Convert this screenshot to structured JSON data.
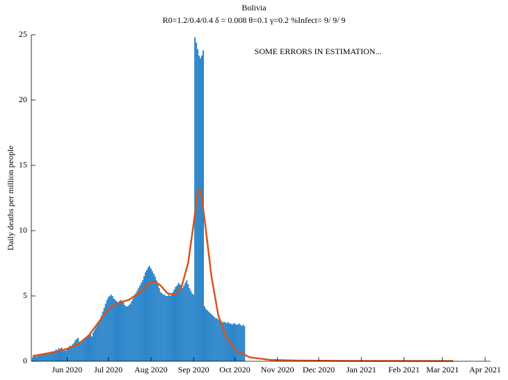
{
  "chart_data": {
    "type": "bar",
    "title": "Bolivia",
    "subtitle": "R0=1.2/0.4/0.4  δ = 0.008  θ=0.1  γ=0.2  %Infect= 9/ 9/ 9",
    "annotation": "SOME ERRORS IN ESTIMATION...",
    "y_label": "Daily deaths per million people",
    "xlim": [
      126,
      460
    ],
    "xticks": [
      {
        "value": 152,
        "label": "Jun 2020"
      },
      {
        "value": 182,
        "label": "Jul 2020"
      },
      {
        "value": 213,
        "label": "Aug 2020"
      },
      {
        "value": 244,
        "label": "Sep 2020"
      },
      {
        "value": 274,
        "label": "Oct 2020"
      },
      {
        "value": 305,
        "label": "Nov 2020"
      },
      {
        "value": 335,
        "label": "Dec 2020"
      },
      {
        "value": 366,
        "label": "Jan 2021"
      },
      {
        "value": 397,
        "label": "Feb 2021"
      },
      {
        "value": 425,
        "label": "Mar 2021"
      },
      {
        "value": 456,
        "label": "Apr 2021"
      }
    ],
    "ylim": [
      0,
      25
    ],
    "yticks": [
      0,
      5,
      10,
      15,
      20,
      25
    ],
    "series": [
      {
        "type": "bar",
        "color": "#2b85c9",
        "x": [
          127,
          128,
          129,
          130,
          131,
          132,
          133,
          134,
          135,
          136,
          137,
          138,
          139,
          140,
          141,
          142,
          143,
          144,
          145,
          146,
          147,
          148,
          149,
          150,
          151,
          152,
          153,
          154,
          155,
          156,
          157,
          158,
          159,
          160,
          161,
          162,
          163,
          164,
          165,
          166,
          167,
          168,
          169,
          170,
          171,
          172,
          173,
          174,
          175,
          176,
          177,
          178,
          179,
          180,
          181,
          182,
          183,
          184,
          185,
          186,
          187,
          188,
          189,
          190,
          191,
          192,
          193,
          194,
          195,
          196,
          197,
          198,
          199,
          200,
          201,
          202,
          203,
          204,
          205,
          206,
          207,
          208,
          209,
          210,
          211,
          212,
          213,
          214,
          215,
          216,
          217,
          218,
          219,
          220,
          221,
          222,
          223,
          224,
          225,
          226,
          227,
          228,
          229,
          230,
          231,
          232,
          233,
          234,
          235,
          236,
          237,
          238,
          239,
          240,
          241,
          242,
          243,
          244,
          245,
          246,
          247,
          248,
          249,
          250,
          251,
          252,
          253,
          254,
          255,
          256,
          257,
          258,
          259,
          260,
          261,
          262,
          263,
          264,
          265,
          266,
          267,
          268,
          269,
          270,
          271,
          272,
          273,
          274,
          275,
          276,
          277,
          278,
          279,
          280,
          281
        ],
        "values": [
          0.3,
          0.35,
          0.4,
          0.35,
          0.45,
          0.5,
          0.45,
          0.5,
          0.6,
          0.55,
          0.6,
          0.65,
          0.6,
          0.7,
          0.75,
          0.7,
          0.8,
          0.9,
          0.85,
          1.0,
          0.95,
          1.05,
          0.9,
          0.85,
          0.8,
          0.9,
          1.0,
          1.2,
          1.1,
          1.3,
          1.4,
          1.6,
          1.7,
          1.8,
          1.5,
          1.4,
          1.5,
          1.6,
          1.7,
          1.8,
          1.9,
          2.0,
          2.1,
          1.9,
          2.2,
          2.4,
          2.6,
          2.8,
          3.0,
          3.2,
          3.5,
          3.8,
          4.1,
          4.4,
          4.7,
          4.9,
          5.0,
          5.1,
          5.0,
          4.8,
          4.7,
          4.6,
          4.5,
          4.6,
          4.7,
          4.6,
          4.5,
          4.3,
          4.2,
          4.2,
          4.3,
          4.4,
          4.6,
          4.8,
          5.0,
          5.2,
          5.4,
          5.6,
          5.8,
          6.0,
          6.2,
          6.5,
          6.8,
          7.0,
          7.2,
          7.3,
          7.1,
          6.9,
          6.7,
          6.5,
          6.2,
          5.9,
          5.6,
          5.3,
          5.2,
          5.1,
          5.1,
          5.0,
          5.0,
          5.1,
          5.0,
          5.1,
          5.3,
          5.5,
          5.7,
          5.8,
          6.0,
          5.9,
          5.8,
          5.6,
          5.8,
          6.0,
          6.2,
          5.9,
          5.6,
          5.4,
          5.2,
          5.1,
          24.8,
          24.4,
          23.9,
          23.4,
          23.2,
          23.4,
          23.8,
          4.2,
          4.0,
          3.9,
          3.8,
          3.7,
          3.6,
          3.5,
          3.4,
          3.3,
          3.3,
          3.2,
          3.1,
          3.1,
          3.0,
          3.0,
          3.0,
          2.9,
          3.0,
          2.9,
          2.9,
          2.8,
          2.9,
          2.9,
          2.8,
          2.8,
          2.9,
          2.8,
          2.7,
          2.8,
          2.7
        ]
      },
      {
        "type": "line",
        "color": "#d95319",
        "x": [
          127,
          135,
          145,
          152,
          160,
          168,
          175,
          182,
          190,
          197,
          205,
          212,
          216,
          220,
          225,
          230,
          235,
          240,
          244,
          247,
          248,
          250,
          253,
          257,
          262,
          268,
          275,
          285,
          300,
          320,
          360,
          433
        ],
        "values": [
          0.4,
          0.55,
          0.75,
          0.95,
          1.3,
          2.0,
          3.0,
          4.0,
          4.5,
          4.7,
          5.3,
          6.0,
          6.1,
          5.8,
          5.2,
          5.1,
          5.6,
          7.5,
          10.5,
          13.0,
          13.2,
          12.5,
          10.0,
          6.5,
          3.5,
          1.8,
          0.8,
          0.3,
          0.1,
          0.05,
          0.03,
          0.02
        ]
      }
    ]
  }
}
